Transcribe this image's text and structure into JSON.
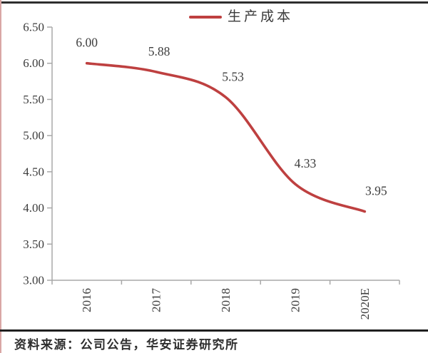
{
  "page": {
    "source_note": "资料来源：公司公告，华安证券研究所"
  },
  "legend": {
    "label": "生产成本"
  },
  "chart_data": {
    "type": "line",
    "title": "生产成本",
    "xlabel": "",
    "ylabel": "",
    "categories": [
      "2016",
      "2017",
      "2018",
      "2019",
      "2020E"
    ],
    "series": [
      {
        "name": "生产成本",
        "values": [
          6.0,
          5.88,
          5.53,
          4.33,
          3.95
        ]
      }
    ],
    "data_labels": [
      "6.00",
      "5.88",
      "5.53",
      "4.33",
      "3.95"
    ],
    "ylim": [
      3.0,
      6.5
    ],
    "ytick_step": 0.5,
    "ytick_labels": [
      "6.50",
      "6.00",
      "5.50",
      "5.00",
      "4.50",
      "4.00",
      "3.50",
      "3.00"
    ],
    "grid": false,
    "legend_position": "top-center",
    "line_color": "#be4040",
    "axis_color": "#a8a8a8",
    "text_color": "#3d3d3d"
  }
}
